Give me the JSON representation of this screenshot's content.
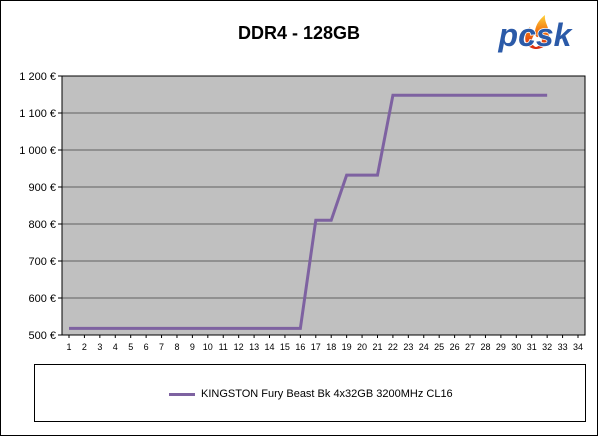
{
  "chart_data": {
    "type": "line",
    "title": "DDR4 - 128GB",
    "xlabel": "",
    "ylabel": "",
    "x": [
      1,
      2,
      3,
      4,
      5,
      6,
      7,
      8,
      9,
      10,
      11,
      12,
      13,
      14,
      15,
      16,
      17,
      18,
      19,
      20,
      21,
      22,
      23,
      24,
      25,
      26,
      27,
      28,
      29,
      30,
      31,
      32
    ],
    "x_ticks": [
      "1",
      "2",
      "3",
      "4",
      "5",
      "6",
      "7",
      "8",
      "9",
      "10",
      "11",
      "12",
      "13",
      "14",
      "15",
      "16",
      "17",
      "18",
      "19",
      "20",
      "21",
      "22",
      "23",
      "24",
      "25",
      "26",
      "27",
      "28",
      "29",
      "30",
      "31",
      "32",
      "33",
      "34"
    ],
    "y_ticks": [
      {
        "value": 500,
        "label": "500 €"
      },
      {
        "value": 600,
        "label": "600 €"
      },
      {
        "value": 700,
        "label": "700 €"
      },
      {
        "value": 800,
        "label": "800 €"
      },
      {
        "value": 900,
        "label": "900 €"
      },
      {
        "value": 1000,
        "label": "1 000 €"
      },
      {
        "value": 1100,
        "label": "1 100 €"
      },
      {
        "value": 1200,
        "label": "1 200 €"
      }
    ],
    "ylim": [
      500,
      1200
    ],
    "xlim": [
      1,
      34
    ],
    "grid": "horizontal",
    "legend_position": "bottom",
    "series": [
      {
        "name": "KINGSTON Fury Beast Bk 4x32GB 3200MHz CL16",
        "color": "#7e62a1",
        "values": [
          518,
          518,
          518,
          518,
          518,
          518,
          518,
          518,
          518,
          518,
          518,
          518,
          518,
          518,
          518,
          518,
          810,
          810,
          932,
          932,
          932,
          1148,
          1148,
          1148,
          1148,
          1148,
          1148,
          1148,
          1148,
          1148,
          1148,
          1148
        ]
      }
    ]
  },
  "logo": {
    "text": "pcsk",
    "icon": "flame-icon"
  },
  "colors": {
    "plot_background": "#c0c0c0",
    "gridline": "#000000",
    "frame": "#000000"
  }
}
